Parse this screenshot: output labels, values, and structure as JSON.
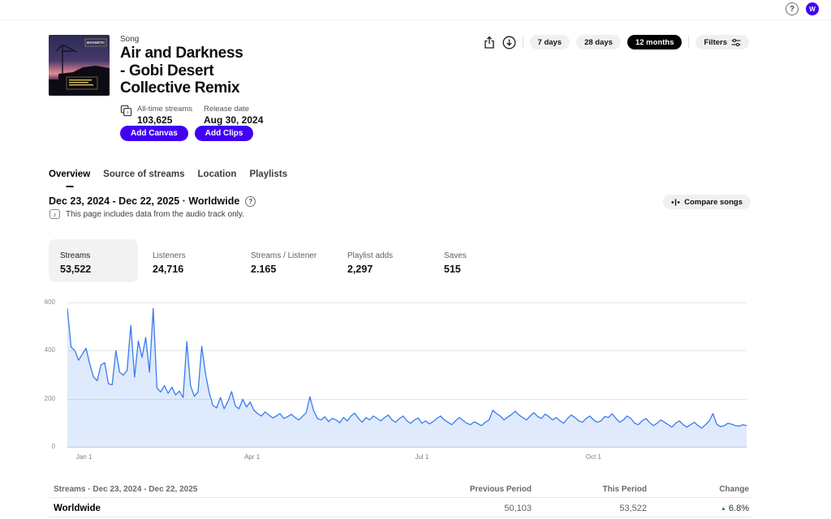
{
  "topbar": {
    "help_glyph": "?",
    "avatar_initial": "W"
  },
  "header": {
    "kicker": "Song",
    "title_line1": "Air and Darkness",
    "title_line2": "- Gobi Desert",
    "title_line3": "Collective Remix",
    "art_label": "MAGNETIC",
    "alltime_label": "All-time streams",
    "alltime_value": "103,625",
    "release_label": "Release date",
    "release_value": "Aug 30, 2024",
    "add_canvas_label": "Add Canvas",
    "add_clips_label": "Add Clips"
  },
  "toolbar": {
    "pills": [
      {
        "label": "7 days",
        "active": false
      },
      {
        "label": "28 days",
        "active": false
      },
      {
        "label": "12 months",
        "active": true
      }
    ],
    "filters_label": "Filters"
  },
  "tabs": [
    {
      "label": "Overview",
      "active": true
    },
    {
      "label": "Source of streams",
      "active": false
    },
    {
      "label": "Location",
      "active": false
    },
    {
      "label": "Playlists",
      "active": false
    }
  ],
  "period": {
    "heading": "Dec 23, 2024 - Dec 22, 2025 · Worldwide",
    "help_glyph": "?",
    "note": "This page includes data from the audio track only.",
    "note_icon_glyph": "♪",
    "compare_label": "Compare songs"
  },
  "stats": [
    {
      "label": "Streams",
      "value": "53,522",
      "selected": true
    },
    {
      "label": "Listeners",
      "value": "24,716",
      "selected": false
    },
    {
      "label": "Streams / Listener",
      "value": "2.165",
      "selected": false
    },
    {
      "label": "Playlist adds",
      "value": "2,297",
      "selected": false
    },
    {
      "label": "Saves",
      "value": "515",
      "selected": false
    }
  ],
  "chart_data": {
    "type": "area",
    "title": "Daily streams, Dec 23, 2024 - Dec 22, 2025, Worldwide",
    "xlabel": "",
    "ylabel": "",
    "ylim": [
      0,
      600
    ],
    "y_ticks": [
      0,
      200,
      400,
      600
    ],
    "x_range_days": [
      0,
      364
    ],
    "x_interval_days": 2,
    "x_ticks": [
      {
        "label": "Jan 1",
        "day": 9
      },
      {
        "label": "Apr 1",
        "day": 99
      },
      {
        "label": "Jul 1",
        "day": 190
      },
      {
        "label": "Oct 1",
        "day": 282
      }
    ],
    "grid": true,
    "legend": false,
    "line_color": "#3a7bef",
    "fill_color": "rgba(58,123,239,0.16)",
    "values": [
      575,
      415,
      400,
      360,
      385,
      410,
      345,
      290,
      275,
      340,
      350,
      262,
      258,
      400,
      310,
      298,
      318,
      505,
      290,
      440,
      372,
      455,
      310,
      575,
      245,
      228,
      255,
      222,
      248,
      215,
      232,
      205,
      437,
      255,
      210,
      228,
      418,
      305,
      225,
      172,
      162,
      205,
      158,
      188,
      230,
      170,
      158,
      198,
      166,
      186,
      152,
      138,
      128,
      145,
      132,
      120,
      128,
      138,
      118,
      125,
      135,
      122,
      112,
      126,
      142,
      208,
      150,
      118,
      112,
      125,
      105,
      118,
      112,
      100,
      122,
      108,
      128,
      140,
      118,
      102,
      122,
      112,
      128,
      118,
      108,
      122,
      132,
      112,
      102,
      118,
      128,
      108,
      98,
      112,
      120,
      98,
      108,
      95,
      105,
      118,
      128,
      112,
      102,
      92,
      108,
      122,
      110,
      98,
      92,
      104,
      96,
      88,
      102,
      112,
      152,
      138,
      128,
      112,
      124,
      134,
      148,
      132,
      122,
      112,
      128,
      142,
      126,
      118,
      136,
      126,
      112,
      122,
      108,
      98,
      118,
      132,
      122,
      108,
      102,
      118,
      128,
      112,
      102,
      108,
      126,
      122,
      138,
      118,
      102,
      112,
      128,
      118,
      98,
      92,
      108,
      118,
      102,
      88,
      98,
      112,
      102,
      92,
      82,
      98,
      108,
      92,
      82,
      92,
      102,
      88,
      78,
      92,
      108,
      138,
      94,
      84,
      88,
      98,
      94,
      88,
      86,
      92,
      88
    ]
  },
  "table": {
    "header_left": "Streams · Dec 23, 2024 - Dec 22, 2025",
    "header_prev": "Previous Period",
    "header_this": "This Period",
    "header_change": "Change",
    "rows": [
      {
        "name": "Worldwide",
        "previous": "50,103",
        "current": "53,522",
        "change": "6.8%",
        "direction": "up"
      }
    ],
    "change_up_glyph": "▲"
  },
  "colors": {
    "accent_purple": "#4100f4",
    "pill_active_bg": "#000000",
    "chart_line": "#3a7bef",
    "change_up_green": "#149343"
  }
}
